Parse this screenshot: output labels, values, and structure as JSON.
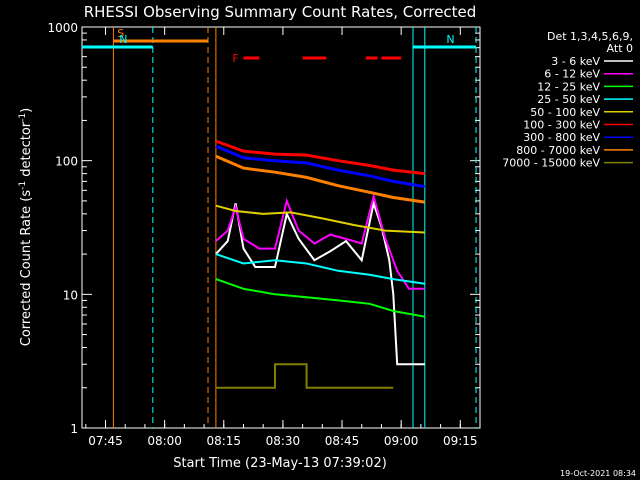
{
  "chart_data": {
    "type": "line",
    "title": "RHESSI Observing Summary Count Rates, Corrected",
    "xlabel": "Start Time (23-May-13 07:39:02)",
    "ylabel": "Corrected Count Rate (s",
    "ylabel_sup1": "-1",
    "ylabel_mid": " detector",
    "ylabel_sup2": "-1",
    "ylabel_end": ")",
    "y_scale": "log",
    "xlim": [
      "07:39:02",
      "09:20:00"
    ],
    "ylim": [
      1,
      1000
    ],
    "x_ticks": [
      "07:45",
      "08:00",
      "08:15",
      "08:30",
      "08:45",
      "09:00",
      "09:15"
    ],
    "y_ticks": [
      "1",
      "10",
      "100",
      "1000"
    ],
    "legend_header": [
      "Det 1,3,4,5,6,9,",
      "Att 0"
    ],
    "timestamp": "19-Oct-2021 08:34",
    "markers": [
      {
        "label": "S",
        "color": "#ff8000",
        "from": "07:47",
        "to": "08:11",
        "kind": "saa"
      },
      {
        "label": "N",
        "color": "#00ffff",
        "from": "07:39",
        "to": "07:57",
        "kind": "night"
      },
      {
        "label": "N",
        "color": "#00ffff",
        "from": "09:03",
        "to": "09:19",
        "kind": "night"
      },
      {
        "label": "F",
        "color": "#ff0000",
        "segments": [
          [
            "08:20",
            "08:24"
          ],
          [
            "08:35",
            "08:41"
          ],
          [
            "08:51",
            "08:54"
          ],
          [
            "08:55",
            "09:00"
          ]
        ],
        "kind": "flare"
      }
    ],
    "verticals": [
      {
        "time": "07:47",
        "color": "#ff8000",
        "dashed": false
      },
      {
        "time": "07:57",
        "color": "#00ffff",
        "dashed": true
      },
      {
        "time": "08:11",
        "color": "#ff8000",
        "dashed": true
      },
      {
        "time": "08:13",
        "color": "#ff8000",
        "dashed": false
      },
      {
        "time": "09:03",
        "color": "#00ffff",
        "dashed": false
      },
      {
        "time": "09:06",
        "color": "#00ffff",
        "dashed": false
      },
      {
        "time": "09:19",
        "color": "#00ffff",
        "dashed": true
      }
    ],
    "series": [
      {
        "name": "3 - 6 keV",
        "color": "#ffffff",
        "points": [
          [
            "08:13",
            20
          ],
          [
            "08:16",
            25
          ],
          [
            "08:18",
            48
          ],
          [
            "08:20",
            22
          ],
          [
            "08:23",
            16
          ],
          [
            "08:28",
            16
          ],
          [
            "08:31",
            40
          ],
          [
            "08:34",
            26
          ],
          [
            "08:38",
            18
          ],
          [
            "08:42",
            21
          ],
          [
            "08:46",
            25
          ],
          [
            "08:50",
            18
          ],
          [
            "08:53",
            48
          ],
          [
            "08:55",
            32
          ],
          [
            "08:57",
            18
          ],
          [
            "08:58",
            10
          ],
          [
            "08:59",
            3
          ],
          [
            "09:06",
            3
          ]
        ]
      },
      {
        "name": "6 - 12 keV",
        "color": "#ff00ff",
        "points": [
          [
            "08:13",
            25
          ],
          [
            "08:16",
            30
          ],
          [
            "08:18",
            45
          ],
          [
            "08:20",
            26
          ],
          [
            "08:24",
            22
          ],
          [
            "08:28",
            22
          ],
          [
            "08:31",
            50
          ],
          [
            "08:34",
            30
          ],
          [
            "08:38",
            24
          ],
          [
            "08:42",
            28
          ],
          [
            "08:46",
            26
          ],
          [
            "08:50",
            24
          ],
          [
            "08:53",
            54
          ],
          [
            "08:56",
            26
          ],
          [
            "08:59",
            15
          ],
          [
            "09:02",
            11
          ],
          [
            "09:06",
            11
          ]
        ]
      },
      {
        "name": "12 - 25 keV",
        "color": "#00ff00",
        "points": [
          [
            "08:13",
            13
          ],
          [
            "08:20",
            11
          ],
          [
            "08:28",
            10
          ],
          [
            "08:36",
            9.5
          ],
          [
            "08:44",
            9
          ],
          [
            "08:52",
            8.5
          ],
          [
            "08:58",
            7.5
          ],
          [
            "09:06",
            6.8
          ]
        ]
      },
      {
        "name": "25 - 50 keV",
        "color": "#00ffff",
        "points": [
          [
            "08:13",
            20
          ],
          [
            "08:20",
            17
          ],
          [
            "08:28",
            18
          ],
          [
            "08:36",
            17
          ],
          [
            "08:44",
            15
          ],
          [
            "08:52",
            14
          ],
          [
            "08:58",
            13
          ],
          [
            "09:06",
            12
          ]
        ]
      },
      {
        "name": "50 - 100 keV",
        "color": "#e0d000",
        "points": [
          [
            "08:13",
            46
          ],
          [
            "08:18",
            42
          ],
          [
            "08:25",
            40
          ],
          [
            "08:32",
            41
          ],
          [
            "08:40",
            37
          ],
          [
            "08:48",
            33
          ],
          [
            "08:56",
            30
          ],
          [
            "09:06",
            29
          ]
        ]
      },
      {
        "name": "100 - 300 keV",
        "color": "#ff0000",
        "points": [
          [
            "08:13",
            140
          ],
          [
            "08:20",
            118
          ],
          [
            "08:28",
            112
          ],
          [
            "08:36",
            110
          ],
          [
            "08:44",
            100
          ],
          [
            "08:52",
            92
          ],
          [
            "08:58",
            85
          ],
          [
            "09:06",
            80
          ]
        ]
      },
      {
        "name": "300 - 800 keV",
        "color": "#0000ff",
        "points": [
          [
            "08:13",
            128
          ],
          [
            "08:20",
            105
          ],
          [
            "08:28",
            100
          ],
          [
            "08:36",
            96
          ],
          [
            "08:44",
            85
          ],
          [
            "08:52",
            77
          ],
          [
            "08:58",
            70
          ],
          [
            "09:06",
            64
          ]
        ]
      },
      {
        "name": "800 - 7000 keV",
        "color": "#ff8000",
        "points": [
          [
            "08:13",
            108
          ],
          [
            "08:20",
            88
          ],
          [
            "08:28",
            82
          ],
          [
            "08:36",
            75
          ],
          [
            "08:44",
            65
          ],
          [
            "08:52",
            58
          ],
          [
            "08:58",
            53
          ],
          [
            "09:06",
            49
          ]
        ]
      },
      {
        "name": "7000 - 15000 keV",
        "color": "#808000",
        "points": [
          [
            "08:13",
            2
          ],
          [
            "08:28",
            2
          ],
          [
            "08:28",
            3
          ],
          [
            "08:36",
            3
          ],
          [
            "08:36",
            2
          ],
          [
            "08:58",
            2
          ]
        ]
      }
    ]
  }
}
